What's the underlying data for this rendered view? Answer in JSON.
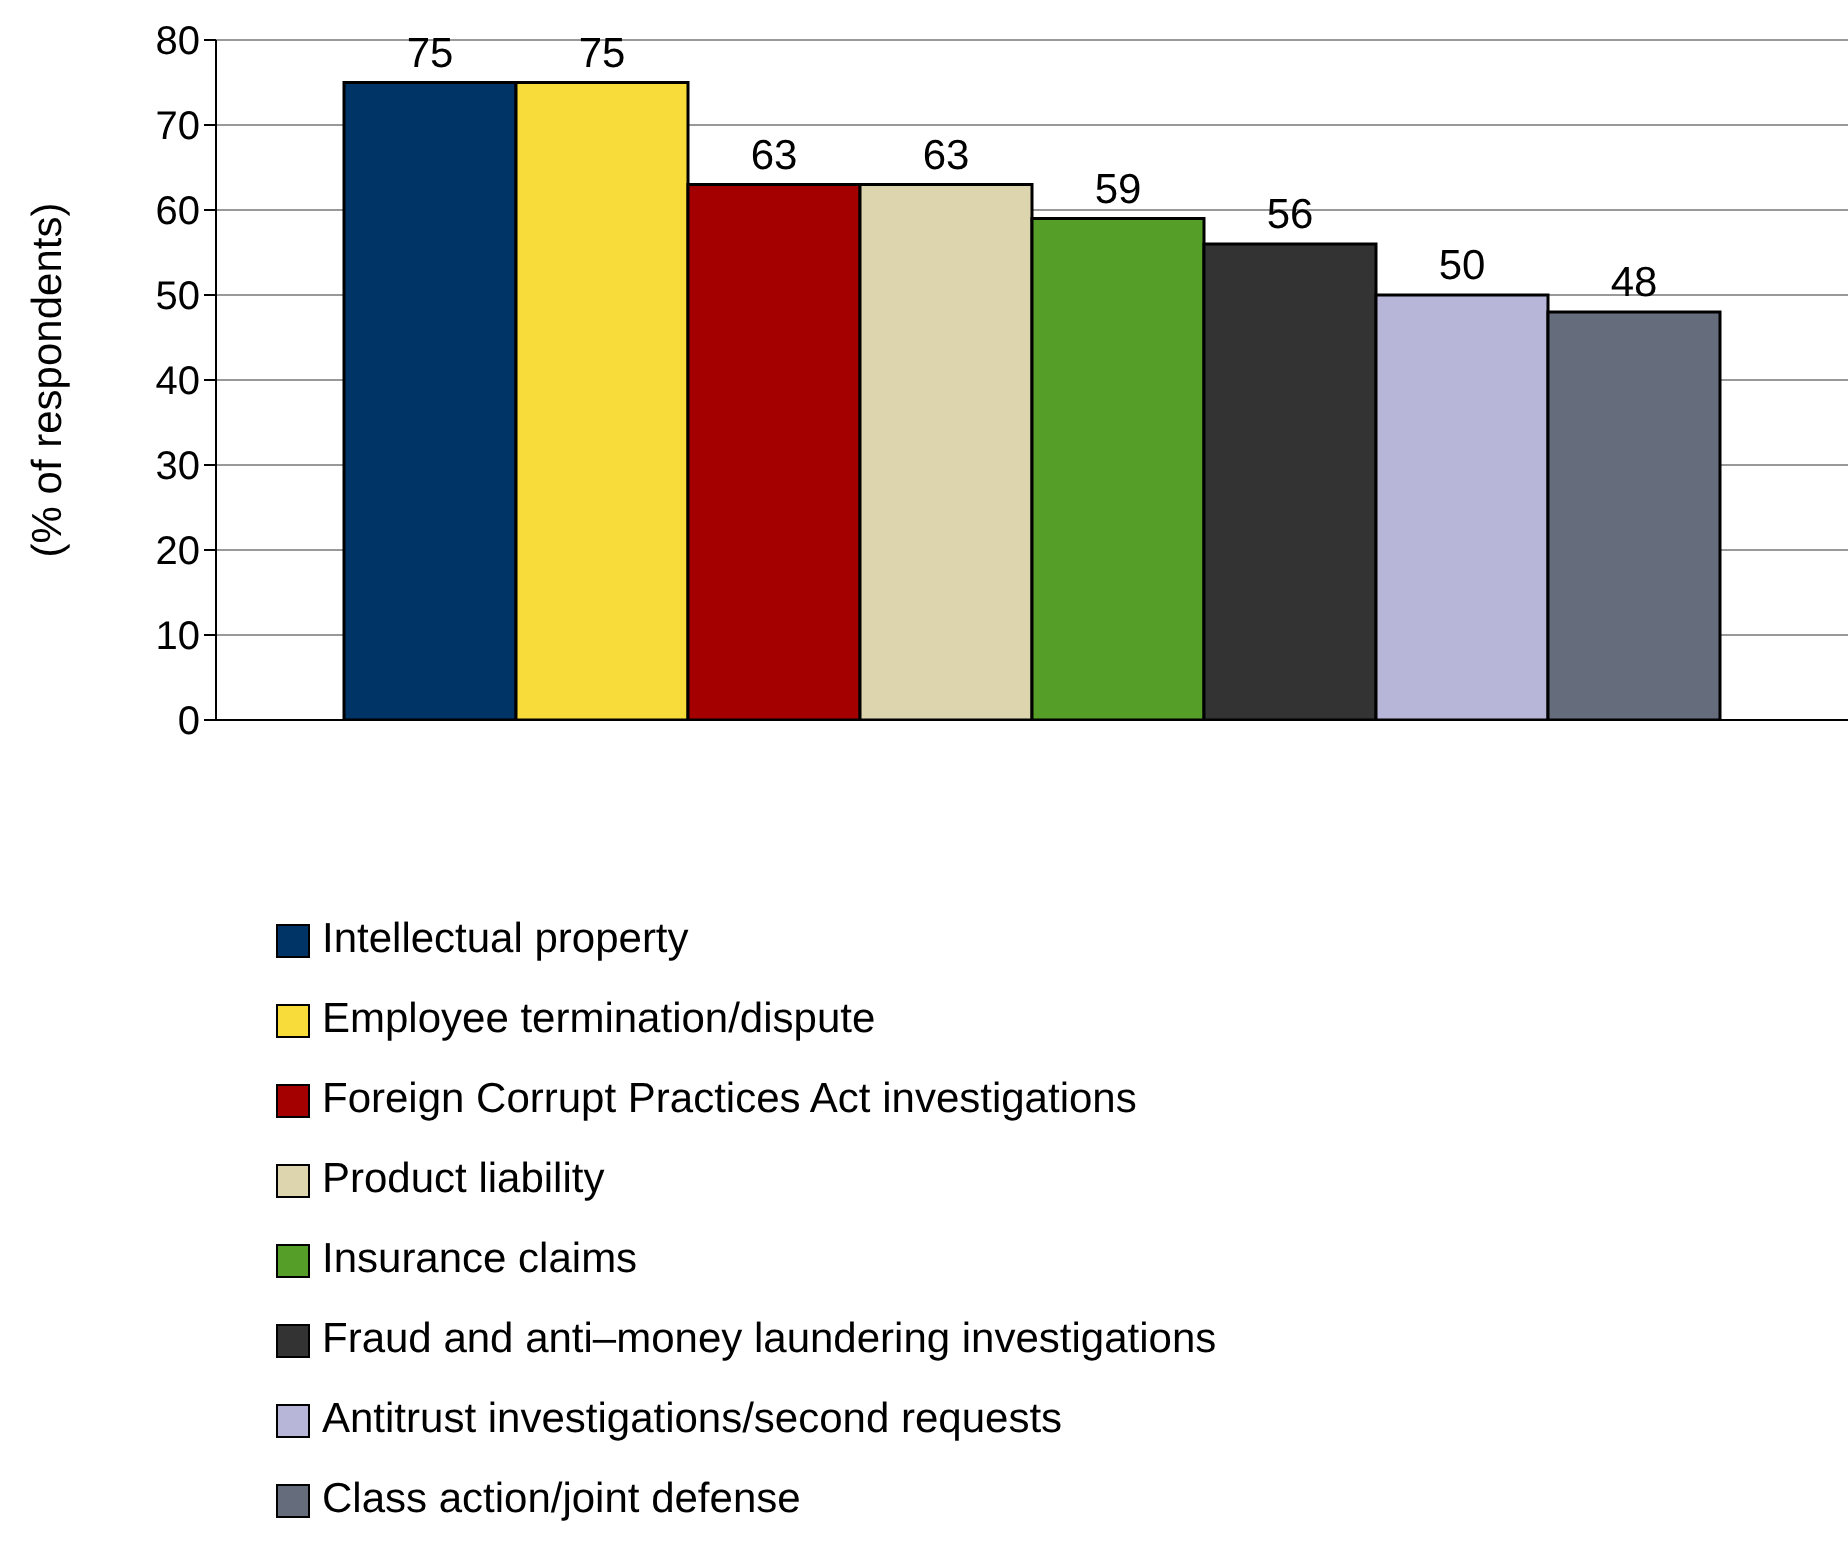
{
  "chart_data": {
    "type": "bar",
    "ylabel": "(% of respondents)",
    "categories": [
      null
    ],
    "series": [
      {
        "name": "Intellectual property",
        "color": "#003366",
        "values": [
          75
        ]
      },
      {
        "name": "Employee termination/dispute",
        "color": "#f7dc3a",
        "values": [
          75
        ]
      },
      {
        "name": "Foreign Corrupt Practices Act investigations",
        "color": "#a50000",
        "values": [
          63
        ]
      },
      {
        "name": "Product liability",
        "color": "#ddd5ae",
        "values": [
          63
        ]
      },
      {
        "name": "Insurance claims",
        "color": "#559e28",
        "values": [
          59
        ]
      },
      {
        "name": "Fraud and anti–money laundering investigations",
        "color": "#333333",
        "values": [
          56
        ]
      },
      {
        "name": "Antitrust investigations/second requests",
        "color": "#b7b5d8",
        "values": [
          50
        ]
      },
      {
        "name": "Class action/joint defense",
        "color": "#656d7d",
        "values": [
          48
        ]
      }
    ],
    "ylim": [
      0,
      80
    ],
    "yticks": [
      0,
      10,
      20,
      30,
      40,
      50,
      60,
      70,
      80
    ],
    "grid": "y",
    "legend": "bottom",
    "data_labels": true
  }
}
